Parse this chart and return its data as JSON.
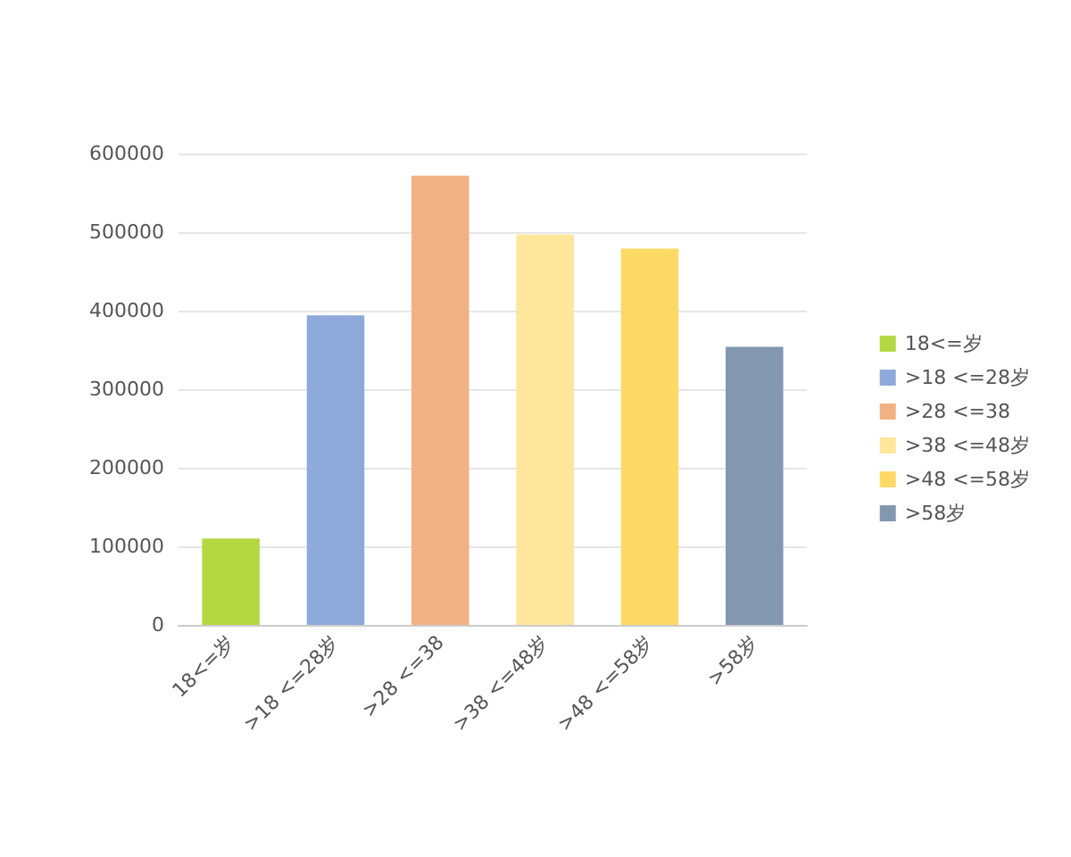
{
  "chart_data": {
    "type": "bar",
    "categories": [
      "18<=岁",
      ">18 <=28岁",
      ">28 <=38",
      ">38 <=48岁",
      ">48 <=58岁",
      ">58岁"
    ],
    "series": [
      {
        "name": "18<=岁",
        "color": "#b5d742",
        "values": [
          110000,
          null,
          null,
          null,
          null,
          null
        ]
      },
      {
        "name": ">18 <=28岁",
        "color": "#8eaadb",
        "values": [
          null,
          394000,
          null,
          null,
          null,
          null
        ]
      },
      {
        "name": ">28 <=38",
        "color": "#f2b183",
        "values": [
          null,
          null,
          572000,
          null,
          null,
          null
        ]
      },
      {
        "name": ">38 <=48岁",
        "color": "#fee69a",
        "values": [
          null,
          null,
          null,
          497000,
          null,
          null
        ]
      },
      {
        "name": ">48 <=58岁",
        "color": "#ffd966",
        "values": [
          null,
          null,
          null,
          null,
          479000,
          null
        ]
      },
      {
        "name": ">58岁",
        "color": "#8497b0",
        "values": [
          null,
          null,
          null,
          null,
          null,
          354000
        ]
      }
    ],
    "ylim": [
      0,
      600000
    ],
    "yticks": [
      0,
      100000,
      200000,
      300000,
      400000,
      500000,
      600000
    ],
    "grid": "y",
    "legend": "right"
  }
}
